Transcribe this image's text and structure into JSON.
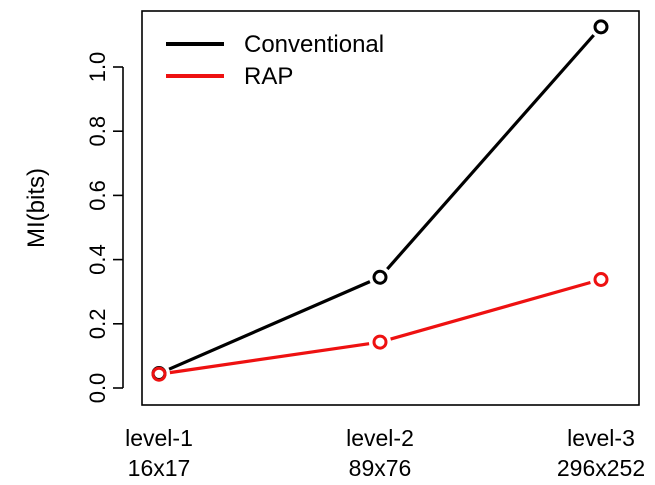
{
  "chart_data": {
    "type": "line",
    "categories": [
      [
        "level-1",
        "16x17"
      ],
      [
        "level-2",
        "89x76"
      ],
      [
        "level-3",
        "296x252"
      ]
    ],
    "xlabel": "",
    "ylabel": "MI(bits)",
    "ylim": [
      0.0,
      1.15
    ],
    "yticks": [
      "0.0",
      "0.2",
      "0.4",
      "0.6",
      "0.8",
      "1.0"
    ],
    "grid": false,
    "legend_position": "top-left",
    "series": [
      {
        "name": "Conventional",
        "color": "#000000",
        "values": [
          0.045,
          0.345,
          1.125
        ]
      },
      {
        "name": "RAP",
        "color": "#ee1111",
        "values": [
          0.043,
          0.143,
          0.338
        ]
      }
    ]
  }
}
